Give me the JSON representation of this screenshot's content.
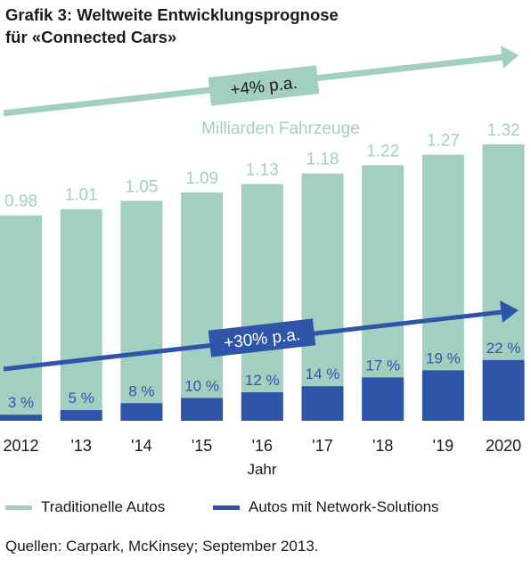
{
  "title": {
    "line1": "Grafik 3: Weltweite Entwicklungsprognose",
    "line2": "für «Connected Cars»"
  },
  "colors": {
    "traditional": "#a3cfc1",
    "network": "#2f55a8"
  },
  "annotations": {
    "top_arrow_label": "+4% p.a.",
    "bottom_arrow_label": "+30% p.a.",
    "unit_label": "Milliarden Fahrzeuge"
  },
  "chart_data": {
    "type": "bar",
    "categories": [
      "2012",
      "'13",
      "'14",
      "'15",
      "'16",
      "'17",
      "'18",
      "'19",
      "2020"
    ],
    "xlabel": "Jahr",
    "ylabel": "",
    "ylim": [
      0,
      1.4
    ],
    "series": [
      {
        "name": "Traditionelle Autos",
        "values": [
          0.98,
          1.01,
          1.05,
          1.09,
          1.13,
          1.18,
          1.22,
          1.27,
          1.32
        ]
      },
      {
        "name": "Autos mit Network-Solutions",
        "values": [
          0.029,
          0.051,
          0.084,
          0.109,
          0.136,
          0.165,
          0.207,
          0.241,
          0.29
        ]
      }
    ],
    "total_labels": [
      "0.98",
      "1.01",
      "1.05",
      "1.09",
      "1.13",
      "1.18",
      "1.22",
      "1.27",
      "1.32"
    ],
    "share_labels": [
      "3 %",
      "5 %",
      "8 %",
      "10 %",
      "12 %",
      "14 %",
      "17 %",
      "19 %",
      "22 %"
    ],
    "legend": [
      "Traditionelle Autos",
      "Autos mit Network-Solutions"
    ],
    "legend_position": "bottom"
  },
  "source": "Quellen: Carpark, McKinsey; September 2013."
}
